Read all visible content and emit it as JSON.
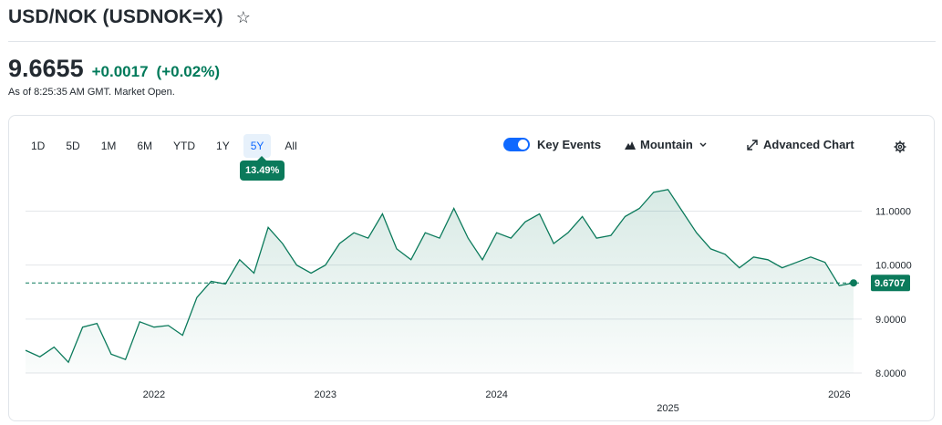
{
  "header": {
    "title": "USD/NOK (USDNOK=X)",
    "star_icon": "star-outline-icon",
    "price": "9.6655",
    "change": "+0.0017",
    "change_pct": "(+0.02%)",
    "as_of": "As of 8:25:35 AM GMT. Market Open.",
    "change_color": "#007a5a"
  },
  "toolbar": {
    "ranges": [
      "1D",
      "5D",
      "1M",
      "6M",
      "YTD",
      "1Y",
      "5Y",
      "All"
    ],
    "active_range": "5Y",
    "period_change": "13.49%",
    "key_events_label": "Key Events",
    "key_events_on": true,
    "chart_type_label": "Mountain",
    "advanced_label": "Advanced Chart",
    "icons": {
      "chart_type": "mountain-icon",
      "chevron": "chevron-down-icon",
      "advanced": "expand-arrows-icon",
      "settings": "gear-icon"
    }
  },
  "chart_data": {
    "type": "area",
    "x_tick_labels": [
      "2022",
      "2023",
      "2024",
      "2025",
      "2026"
    ],
    "y_tick_labels": [
      "11.0000",
      "10.0000",
      "9.0000",
      "8.0000"
    ],
    "ylim": [
      8.0,
      11.6
    ],
    "xlim": [
      "2021-04",
      "2026-02"
    ],
    "grid": true,
    "line_color": "#0b7a5b",
    "fill_color": "#0b7a5b",
    "reference_line": {
      "value": 9.67,
      "style": "dashed"
    },
    "last_value_label": "9.6707",
    "series": [
      {
        "x": [
          "2021-04",
          "2021-05",
          "2021-06",
          "2021-07",
          "2021-08",
          "2021-09",
          "2021-10",
          "2021-11",
          "2021-12",
          "2022-01",
          "2022-02",
          "2022-03",
          "2022-04",
          "2022-05",
          "2022-06",
          "2022-07",
          "2022-08",
          "2022-09",
          "2022-10",
          "2022-11",
          "2022-12",
          "2023-01",
          "2023-02",
          "2023-03",
          "2023-04",
          "2023-05",
          "2023-06",
          "2023-07",
          "2023-08",
          "2023-09",
          "2023-10",
          "2023-11",
          "2023-12",
          "2024-01",
          "2024-02",
          "2024-03",
          "2024-04",
          "2024-05",
          "2024-06",
          "2024-07",
          "2024-08",
          "2024-09",
          "2024-10",
          "2024-11",
          "2024-12",
          "2025-01",
          "2025-02",
          "2025-03",
          "2025-04",
          "2025-05",
          "2025-06",
          "2025-07",
          "2025-08",
          "2025-09",
          "2025-10",
          "2025-11",
          "2025-12",
          "2026-01",
          "2026-02"
        ],
        "values": [
          8.42,
          8.3,
          8.48,
          8.2,
          8.85,
          8.92,
          8.35,
          8.25,
          8.95,
          8.85,
          8.88,
          8.7,
          9.4,
          9.7,
          9.65,
          10.1,
          9.85,
          10.7,
          10.4,
          10.0,
          9.85,
          10.0,
          10.4,
          10.6,
          10.5,
          10.95,
          10.3,
          10.1,
          10.6,
          10.5,
          11.05,
          10.5,
          10.1,
          10.6,
          10.5,
          10.8,
          10.95,
          10.4,
          10.6,
          10.9,
          10.5,
          10.55,
          10.9,
          11.05,
          11.35,
          11.4,
          11.0,
          10.6,
          10.3,
          10.2,
          9.95,
          10.15,
          10.1,
          9.95,
          10.05,
          10.15,
          10.05,
          9.62,
          9.67
        ]
      }
    ]
  }
}
